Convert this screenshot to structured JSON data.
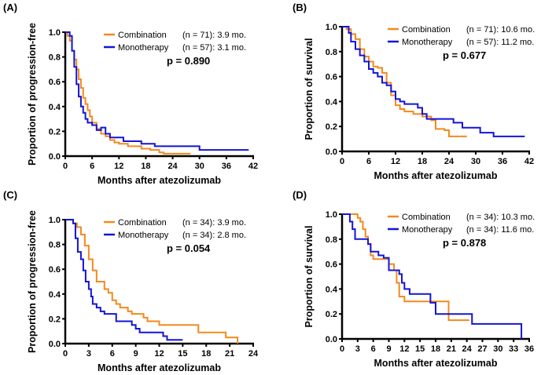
{
  "colors": {
    "combination": "#F28A1E",
    "monotherapy": "#1414D6",
    "axis": "#000000"
  },
  "chart_data": [
    {
      "type": "line",
      "label": "(A)",
      "ylabel": "Proportion of progression-free",
      "xlabel": "Months after atezolizumab",
      "xlim": [
        0,
        42
      ],
      "ylim": [
        0,
        1
      ],
      "xticks": [
        "0",
        "6",
        "12",
        "18",
        "24",
        "30",
        "36",
        "42"
      ],
      "yticks": [
        "0.0",
        "0.2",
        "0.4",
        "0.6",
        "0.8",
        "1.0"
      ],
      "p_text": "p = 0.890",
      "series": [
        {
          "name": "Combination",
          "n_text": "(n = 71): 3.9 mo.",
          "steps": [
            [
              0,
              1
            ],
            [
              0.5,
              0.97
            ],
            [
              1,
              0.93
            ],
            [
              1.5,
              0.85
            ],
            [
              2,
              0.78
            ],
            [
              2.5,
              0.7
            ],
            [
              3,
              0.62
            ],
            [
              3.5,
              0.55
            ],
            [
              4,
              0.47
            ],
            [
              4.5,
              0.42
            ],
            [
              5,
              0.37
            ],
            [
              5.5,
              0.32
            ],
            [
              6,
              0.27
            ],
            [
              7,
              0.22
            ],
            [
              8,
              0.18
            ],
            [
              9,
              0.16
            ],
            [
              10,
              0.13
            ],
            [
              11,
              0.11
            ],
            [
              12,
              0.1
            ],
            [
              14,
              0.08
            ],
            [
              17,
              0.06
            ],
            [
              19,
              0.05
            ],
            [
              21,
              0.03
            ],
            [
              22,
              0.02
            ],
            [
              28,
              0.02
            ]
          ]
        },
        {
          "name": "Monotherapy",
          "n_text": "(n = 57): 3.1 mo.",
          "steps": [
            [
              0,
              1
            ],
            [
              1,
              0.97
            ],
            [
              1.5,
              0.85
            ],
            [
              2,
              0.72
            ],
            [
              2.5,
              0.58
            ],
            [
              3,
              0.48
            ],
            [
              3.5,
              0.4
            ],
            [
              4,
              0.35
            ],
            [
              4.5,
              0.3
            ],
            [
              5,
              0.27
            ],
            [
              6,
              0.25
            ],
            [
              7,
              0.21
            ],
            [
              8,
              0.23
            ],
            [
              9,
              0.18
            ],
            [
              10,
              0.15
            ],
            [
              13,
              0.12
            ],
            [
              17,
              0.1
            ],
            [
              20,
              0.08
            ],
            [
              30,
              0.05
            ],
            [
              41,
              0.05
            ]
          ]
        }
      ]
    },
    {
      "type": "line",
      "label": "(B)",
      "ylabel": "Proportion of survival",
      "xlabel": "Months after atezolizumab",
      "xlim": [
        0,
        42
      ],
      "ylim": [
        0,
        1
      ],
      "xticks": [
        "0",
        "6",
        "12",
        "18",
        "24",
        "30",
        "36",
        "42"
      ],
      "yticks": [
        "0.0",
        "0.2",
        "0.4",
        "0.6",
        "0.8",
        "1.0"
      ],
      "p_text": "p = 0.677",
      "series": [
        {
          "name": "Combination",
          "n_text": "(n = 71): 10.6 mo.",
          "steps": [
            [
              0,
              1
            ],
            [
              1,
              0.98
            ],
            [
              2,
              0.94
            ],
            [
              3,
              0.9
            ],
            [
              4,
              0.82
            ],
            [
              5,
              0.76
            ],
            [
              6,
              0.72
            ],
            [
              7,
              0.68
            ],
            [
              8,
              0.67
            ],
            [
              9,
              0.63
            ],
            [
              10,
              0.55
            ],
            [
              11,
              0.45
            ],
            [
              12,
              0.37
            ],
            [
              13,
              0.34
            ],
            [
              14,
              0.32
            ],
            [
              16,
              0.3
            ],
            [
              18,
              0.28
            ],
            [
              20,
              0.25
            ],
            [
              21,
              0.18
            ],
            [
              23,
              0.17
            ],
            [
              24,
              0.12
            ],
            [
              28,
              0.12
            ]
          ]
        },
        {
          "name": "Monotherapy",
          "n_text": "(n = 57): 11.2 mo.",
          "steps": [
            [
              0,
              1
            ],
            [
              1,
              1
            ],
            [
              1.5,
              0.95
            ],
            [
              2,
              0.88
            ],
            [
              3,
              0.82
            ],
            [
              4,
              0.77
            ],
            [
              5,
              0.72
            ],
            [
              6,
              0.66
            ],
            [
              7,
              0.63
            ],
            [
              8,
              0.6
            ],
            [
              9,
              0.55
            ],
            [
              10,
              0.53
            ],
            [
              11,
              0.48
            ],
            [
              12,
              0.42
            ],
            [
              13,
              0.4
            ],
            [
              14,
              0.38
            ],
            [
              17,
              0.35
            ],
            [
              18,
              0.3
            ],
            [
              19,
              0.26
            ],
            [
              25,
              0.23
            ],
            [
              27,
              0.19
            ],
            [
              31,
              0.15
            ],
            [
              34,
              0.12
            ],
            [
              41,
              0.12
            ]
          ]
        }
      ]
    },
    {
      "type": "line",
      "label": "(C)",
      "ylabel": "Proportion of progression-free",
      "xlabel": "Months after atezolizumab",
      "xlim": [
        0,
        24
      ],
      "ylim": [
        0,
        1
      ],
      "xticks": [
        "0",
        "3",
        "6",
        "9",
        "12",
        "15",
        "18",
        "21",
        "24"
      ],
      "yticks": [
        "0.0",
        "0.2",
        "0.4",
        "0.6",
        "0.8",
        "1.0"
      ],
      "p_text": "p = 0.054",
      "series": [
        {
          "name": "Combination",
          "n_text": "(n = 34): 3.9 mo.",
          "steps": [
            [
              0,
              1
            ],
            [
              1,
              0.97
            ],
            [
              1.5,
              0.94
            ],
            [
              2,
              0.88
            ],
            [
              2.5,
              0.79
            ],
            [
              3,
              0.68
            ],
            [
              3.5,
              0.59
            ],
            [
              4,
              0.5
            ],
            [
              5,
              0.44
            ],
            [
              5.5,
              0.41
            ],
            [
              6,
              0.35
            ],
            [
              6.5,
              0.32
            ],
            [
              7,
              0.29
            ],
            [
              8,
              0.26
            ],
            [
              8.5,
              0.24
            ],
            [
              10,
              0.21
            ],
            [
              10.5,
              0.18
            ],
            [
              12,
              0.15
            ],
            [
              17,
              0.09
            ],
            [
              20.5,
              0.05
            ],
            [
              22,
              0
            ]
          ]
        },
        {
          "name": "Monotherapy",
          "n_text": "(n = 34): 2.8 mo.",
          "steps": [
            [
              0,
              1
            ],
            [
              1,
              0.97
            ],
            [
              1.3,
              0.85
            ],
            [
              1.6,
              0.74
            ],
            [
              2,
              0.68
            ],
            [
              2.3,
              0.59
            ],
            [
              2.6,
              0.5
            ],
            [
              3,
              0.44
            ],
            [
              3.3,
              0.38
            ],
            [
              3.5,
              0.32
            ],
            [
              4,
              0.29
            ],
            [
              4.5,
              0.26
            ],
            [
              5,
              0.24
            ],
            [
              6.5,
              0.18
            ],
            [
              8.5,
              0.15
            ],
            [
              9,
              0.12
            ],
            [
              9.5,
              0.09
            ],
            [
              12.5,
              0.06
            ],
            [
              13,
              0.03
            ],
            [
              15,
              0.03
            ]
          ]
        }
      ]
    },
    {
      "type": "line",
      "label": "(D)",
      "ylabel": "Proportion of survival",
      "xlabel": "Months after atezolizumab",
      "xlim": [
        0,
        36
      ],
      "ylim": [
        0,
        1
      ],
      "xticks": [
        "0",
        "3",
        "6",
        "9",
        "12",
        "15",
        "18",
        "21",
        "24",
        "27",
        "30",
        "33",
        "36"
      ],
      "yticks": [
        "0.0",
        "0.2",
        "0.4",
        "0.6",
        "0.8",
        "1.0"
      ],
      "p_text": "p = 0.878",
      "series": [
        {
          "name": "Combination",
          "n_text": "(n = 34): 10.3 mo.",
          "steps": [
            [
              0,
              1
            ],
            [
              2.5,
              1
            ],
            [
              3,
              0.97
            ],
            [
              3.5,
              0.94
            ],
            [
              4,
              0.88
            ],
            [
              4.5,
              0.82
            ],
            [
              5,
              0.76
            ],
            [
              5.5,
              0.67
            ],
            [
              6,
              0.64
            ],
            [
              9,
              0.6
            ],
            [
              10,
              0.55
            ],
            [
              10.5,
              0.45
            ],
            [
              11,
              0.34
            ],
            [
              12,
              0.3
            ],
            [
              20.5,
              0.15
            ],
            [
              24.5,
              0.15
            ]
          ]
        },
        {
          "name": "Monotherapy",
          "n_text": "(n = 34): 11.6 mo.",
          "steps": [
            [
              0,
              1
            ],
            [
              1.5,
              0.94
            ],
            [
              2,
              0.88
            ],
            [
              2.5,
              0.8
            ],
            [
              5,
              0.76
            ],
            [
              5.5,
              0.7
            ],
            [
              7,
              0.67
            ],
            [
              8,
              0.65
            ],
            [
              9,
              0.55
            ],
            [
              11,
              0.52
            ],
            [
              11.5,
              0.45
            ],
            [
              12,
              0.4
            ],
            [
              13,
              0.36
            ],
            [
              17,
              0.29
            ],
            [
              18,
              0.2
            ],
            [
              25,
              0.12
            ],
            [
              34.5,
              0
            ]
          ]
        }
      ]
    }
  ]
}
